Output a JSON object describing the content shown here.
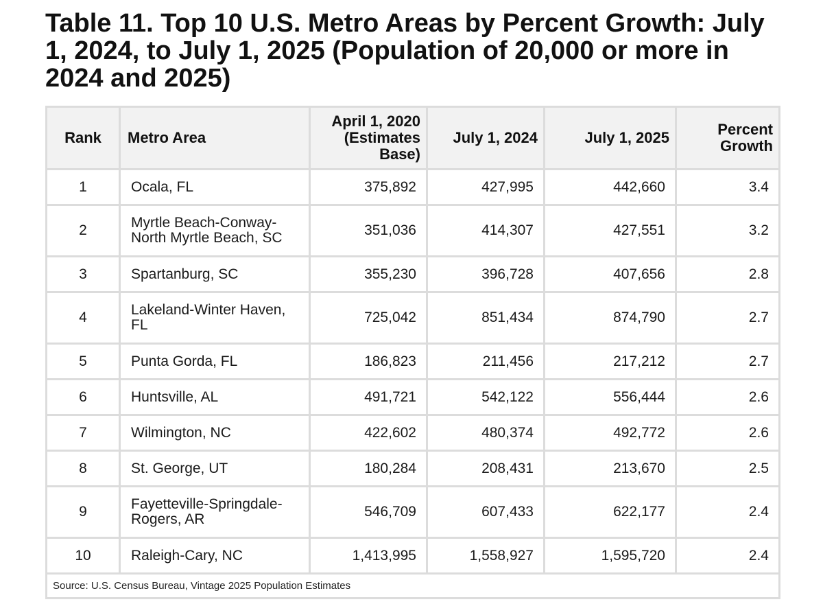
{
  "title": "Table 11. Top 10 U.S. Metro Areas by Percent Growth: July 1, 2024, to July 1, 2025 (Population of 20,000 or more in 2024 and 2025)",
  "headers": {
    "rank": "Rank",
    "metro": "Metro Area",
    "apr2020_l1": "April 1, 2020",
    "apr2020_l2": "(Estimates",
    "apr2020_l3": "Base)",
    "jul2024": "July 1, 2024",
    "jul2025": "July 1, 2025",
    "pct_l1": "Percent",
    "pct_l2": "Growth"
  },
  "rows": [
    {
      "rank": "1",
      "metro": "Ocala, FL",
      "apr2020": "375,892",
      "jul2024": "427,995",
      "jul2025": "442,660",
      "pct": "3.4"
    },
    {
      "rank": "2",
      "metro": "Myrtle Beach-Conway-North Myrtle Beach, SC",
      "apr2020": "351,036",
      "jul2024": "414,307",
      "jul2025": "427,551",
      "pct": "3.2"
    },
    {
      "rank": "3",
      "metro": "Spartanburg, SC",
      "apr2020": "355,230",
      "jul2024": "396,728",
      "jul2025": "407,656",
      "pct": "2.8"
    },
    {
      "rank": "4",
      "metro": "Lakeland-Winter Haven, FL",
      "apr2020": "725,042",
      "jul2024": "851,434",
      "jul2025": "874,790",
      "pct": "2.7"
    },
    {
      "rank": "5",
      "metro": "Punta Gorda, FL",
      "apr2020": "186,823",
      "jul2024": "211,456",
      "jul2025": "217,212",
      "pct": "2.7"
    },
    {
      "rank": "6",
      "metro": "Huntsville, AL",
      "apr2020": "491,721",
      "jul2024": "542,122",
      "jul2025": "556,444",
      "pct": "2.6"
    },
    {
      "rank": "7",
      "metro": "Wilmington, NC",
      "apr2020": "422,602",
      "jul2024": "480,374",
      "jul2025": "492,772",
      "pct": "2.6"
    },
    {
      "rank": "8",
      "metro": "St. George, UT",
      "apr2020": "180,284",
      "jul2024": "208,431",
      "jul2025": "213,670",
      "pct": "2.5"
    },
    {
      "rank": "9",
      "metro": "Fayetteville-Springdale-Rogers, AR",
      "apr2020": "546,709",
      "jul2024": "607,433",
      "jul2025": "622,177",
      "pct": "2.4"
    },
    {
      "rank": "10",
      "metro": "Raleigh-Cary, NC",
      "apr2020": "1,413,995",
      "jul2024": "1,558,927",
      "jul2025": "1,595,720",
      "pct": "2.4"
    }
  ],
  "source": "Source: U.S. Census Bureau, Vintage 2025 Population Estimates"
}
